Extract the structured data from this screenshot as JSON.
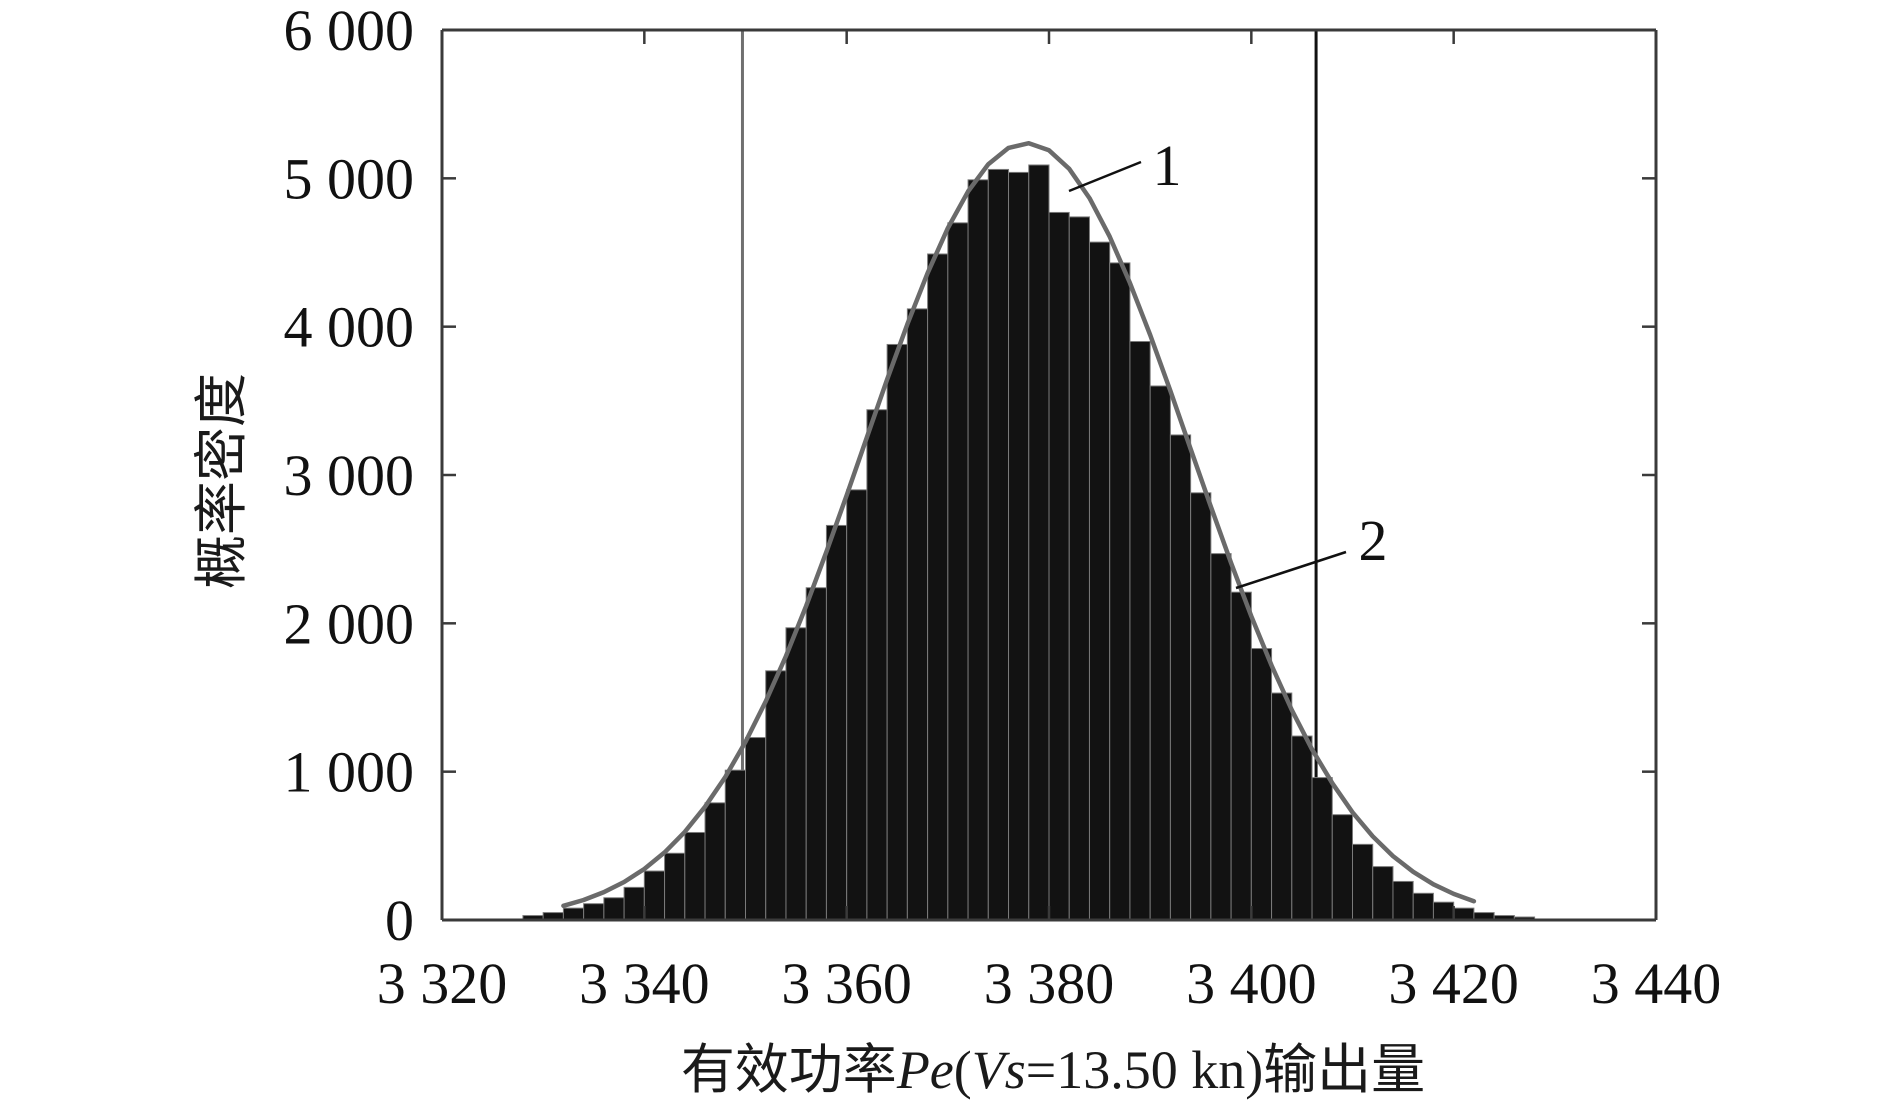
{
  "chart_data": {
    "type": "bar",
    "ylabel": "概率密度",
    "xlabel": [
      "有效功率",
      "Pe",
      "(",
      "Vs",
      "=13.50 kn)输出量"
    ],
    "xlim": [
      3320,
      3440
    ],
    "ylim": [
      0,
      6000
    ],
    "xticks": [
      3320,
      3340,
      3360,
      3380,
      3400,
      3420,
      3440
    ],
    "xtick_labels": [
      "3 320",
      "3 340",
      "3 360",
      "3 380",
      "3 400",
      "3 420",
      "3 440"
    ],
    "yticks": [
      0,
      1000,
      2000,
      3000,
      4000,
      5000,
      6000
    ],
    "ytick_labels": [
      "0",
      "1 000",
      "2 000",
      "3 000",
      "4 000",
      "5 000",
      "6 000"
    ],
    "grid": false,
    "legend": "none",
    "histogram": {
      "bin_width": 2,
      "color": "#121212",
      "centers": [
        3329,
        3331,
        3333,
        3335,
        3337,
        3339,
        3341,
        3343,
        3345,
        3347,
        3349,
        3351,
        3353,
        3355,
        3357,
        3359,
        3361,
        3363,
        3365,
        3367,
        3369,
        3371,
        3373,
        3375,
        3377,
        3379,
        3381,
        3383,
        3385,
        3387,
        3389,
        3391,
        3393,
        3395,
        3397,
        3399,
        3401,
        3403,
        3405,
        3407,
        3409,
        3411,
        3413,
        3415,
        3417,
        3419,
        3421,
        3423,
        3425,
        3427
      ],
      "values": [
        30,
        50,
        80,
        110,
        150,
        220,
        330,
        450,
        590,
        790,
        1010,
        1230,
        1680,
        1970,
        2240,
        2660,
        2900,
        3440,
        3880,
        4120,
        4490,
        4700,
        4990,
        5060,
        5040,
        5090,
        4770,
        4740,
        4570,
        4430,
        3900,
        3600,
        3270,
        2880,
        2470,
        2210,
        1830,
        1530,
        1240,
        960,
        710,
        510,
        360,
        260,
        180,
        120,
        80,
        50,
        30,
        20
      ]
    },
    "curve": {
      "color": "#6a6a6a",
      "x": [
        3332,
        3334,
        3336,
        3338,
        3340,
        3342,
        3344,
        3346,
        3348,
        3350,
        3352,
        3354,
        3356,
        3358,
        3360,
        3362,
        3364,
        3366,
        3368,
        3370,
        3372,
        3374,
        3376,
        3378,
        3380,
        3382,
        3384,
        3386,
        3388,
        3390,
        3392,
        3394,
        3396,
        3398,
        3400,
        3402,
        3404,
        3406,
        3408,
        3410,
        3412,
        3414,
        3416,
        3418,
        3420,
        3422
      ],
      "y": [
        96,
        135,
        188,
        256,
        344,
        456,
        594,
        763,
        964,
        1201,
        1473,
        1780,
        2118,
        2482,
        2864,
        3255,
        3644,
        4017,
        4361,
        4664,
        4912,
        5095,
        5205,
        5237,
        5189,
        5064,
        4867,
        4607,
        4295,
        3944,
        3567,
        3176,
        2786,
        2407,
        2048,
        1716,
        1416,
        1151,
        922,
        726,
        564,
        431,
        325,
        241,
        176,
        127
      ]
    },
    "reference_lines": [
      {
        "x": 3349.7,
        "color": "#707070"
      },
      {
        "x": 3406.4,
        "color": "#111111"
      }
    ],
    "annotations": [
      "1",
      "2"
    ]
  }
}
